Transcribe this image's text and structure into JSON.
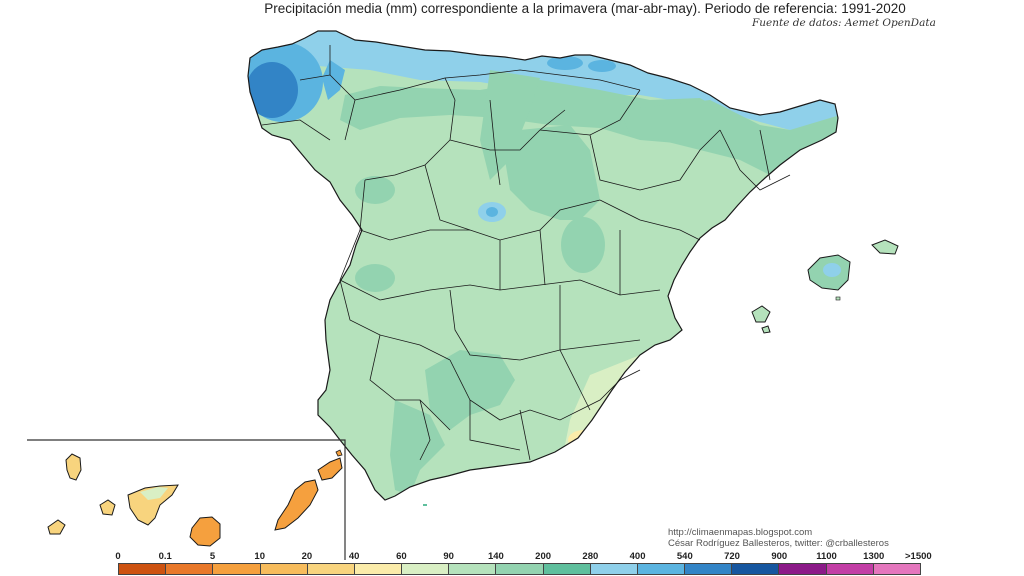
{
  "title": "Precipitación media (mm) correspondiente a la primavera (mar-abr-may). Periodo de referencia: 1991-2020",
  "source": "Fuente de datos: Aemet OpenData",
  "credits": {
    "blog": "http://climaenmapas.blogspot.com",
    "author": "César Rodríguez Ballesteros, twitter: @crballesteros"
  },
  "legend": {
    "labels": [
      "0",
      "0.1",
      "5",
      "10",
      "20",
      "40",
      "60",
      "90",
      "140",
      "200",
      "280",
      "400",
      "540",
      "720",
      "900",
      "1100",
      "1300",
      ">1500"
    ],
    "colors": [
      "#cd5210",
      "#e8782a",
      "#f5a03e",
      "#f7bc5c",
      "#f8d47e",
      "#fbecaa",
      "#d9efc4",
      "#b5e2bc",
      "#93d3b0",
      "#5fbf9d",
      "#8fd0ea",
      "#5bb4e0",
      "#3284c6",
      "#16569f",
      "#8b1a88",
      "#c23ea5",
      "#e476bd",
      "#f3a6cc"
    ]
  },
  "palette": {
    "land_base": "#b5e2bc",
    "humid_green": "#93d3b0",
    "wet_green": "#5fbf9d",
    "light_blue": "#8fd0ea",
    "mid_blue": "#5bb4e0",
    "dark_blue": "#3284c6",
    "dry_green": "#d9efc4",
    "dry_yellow": "#fbecaa",
    "canary_light": "#f8d47e",
    "canary_orange": "#f5a03e",
    "border": "#1a1a1a"
  }
}
